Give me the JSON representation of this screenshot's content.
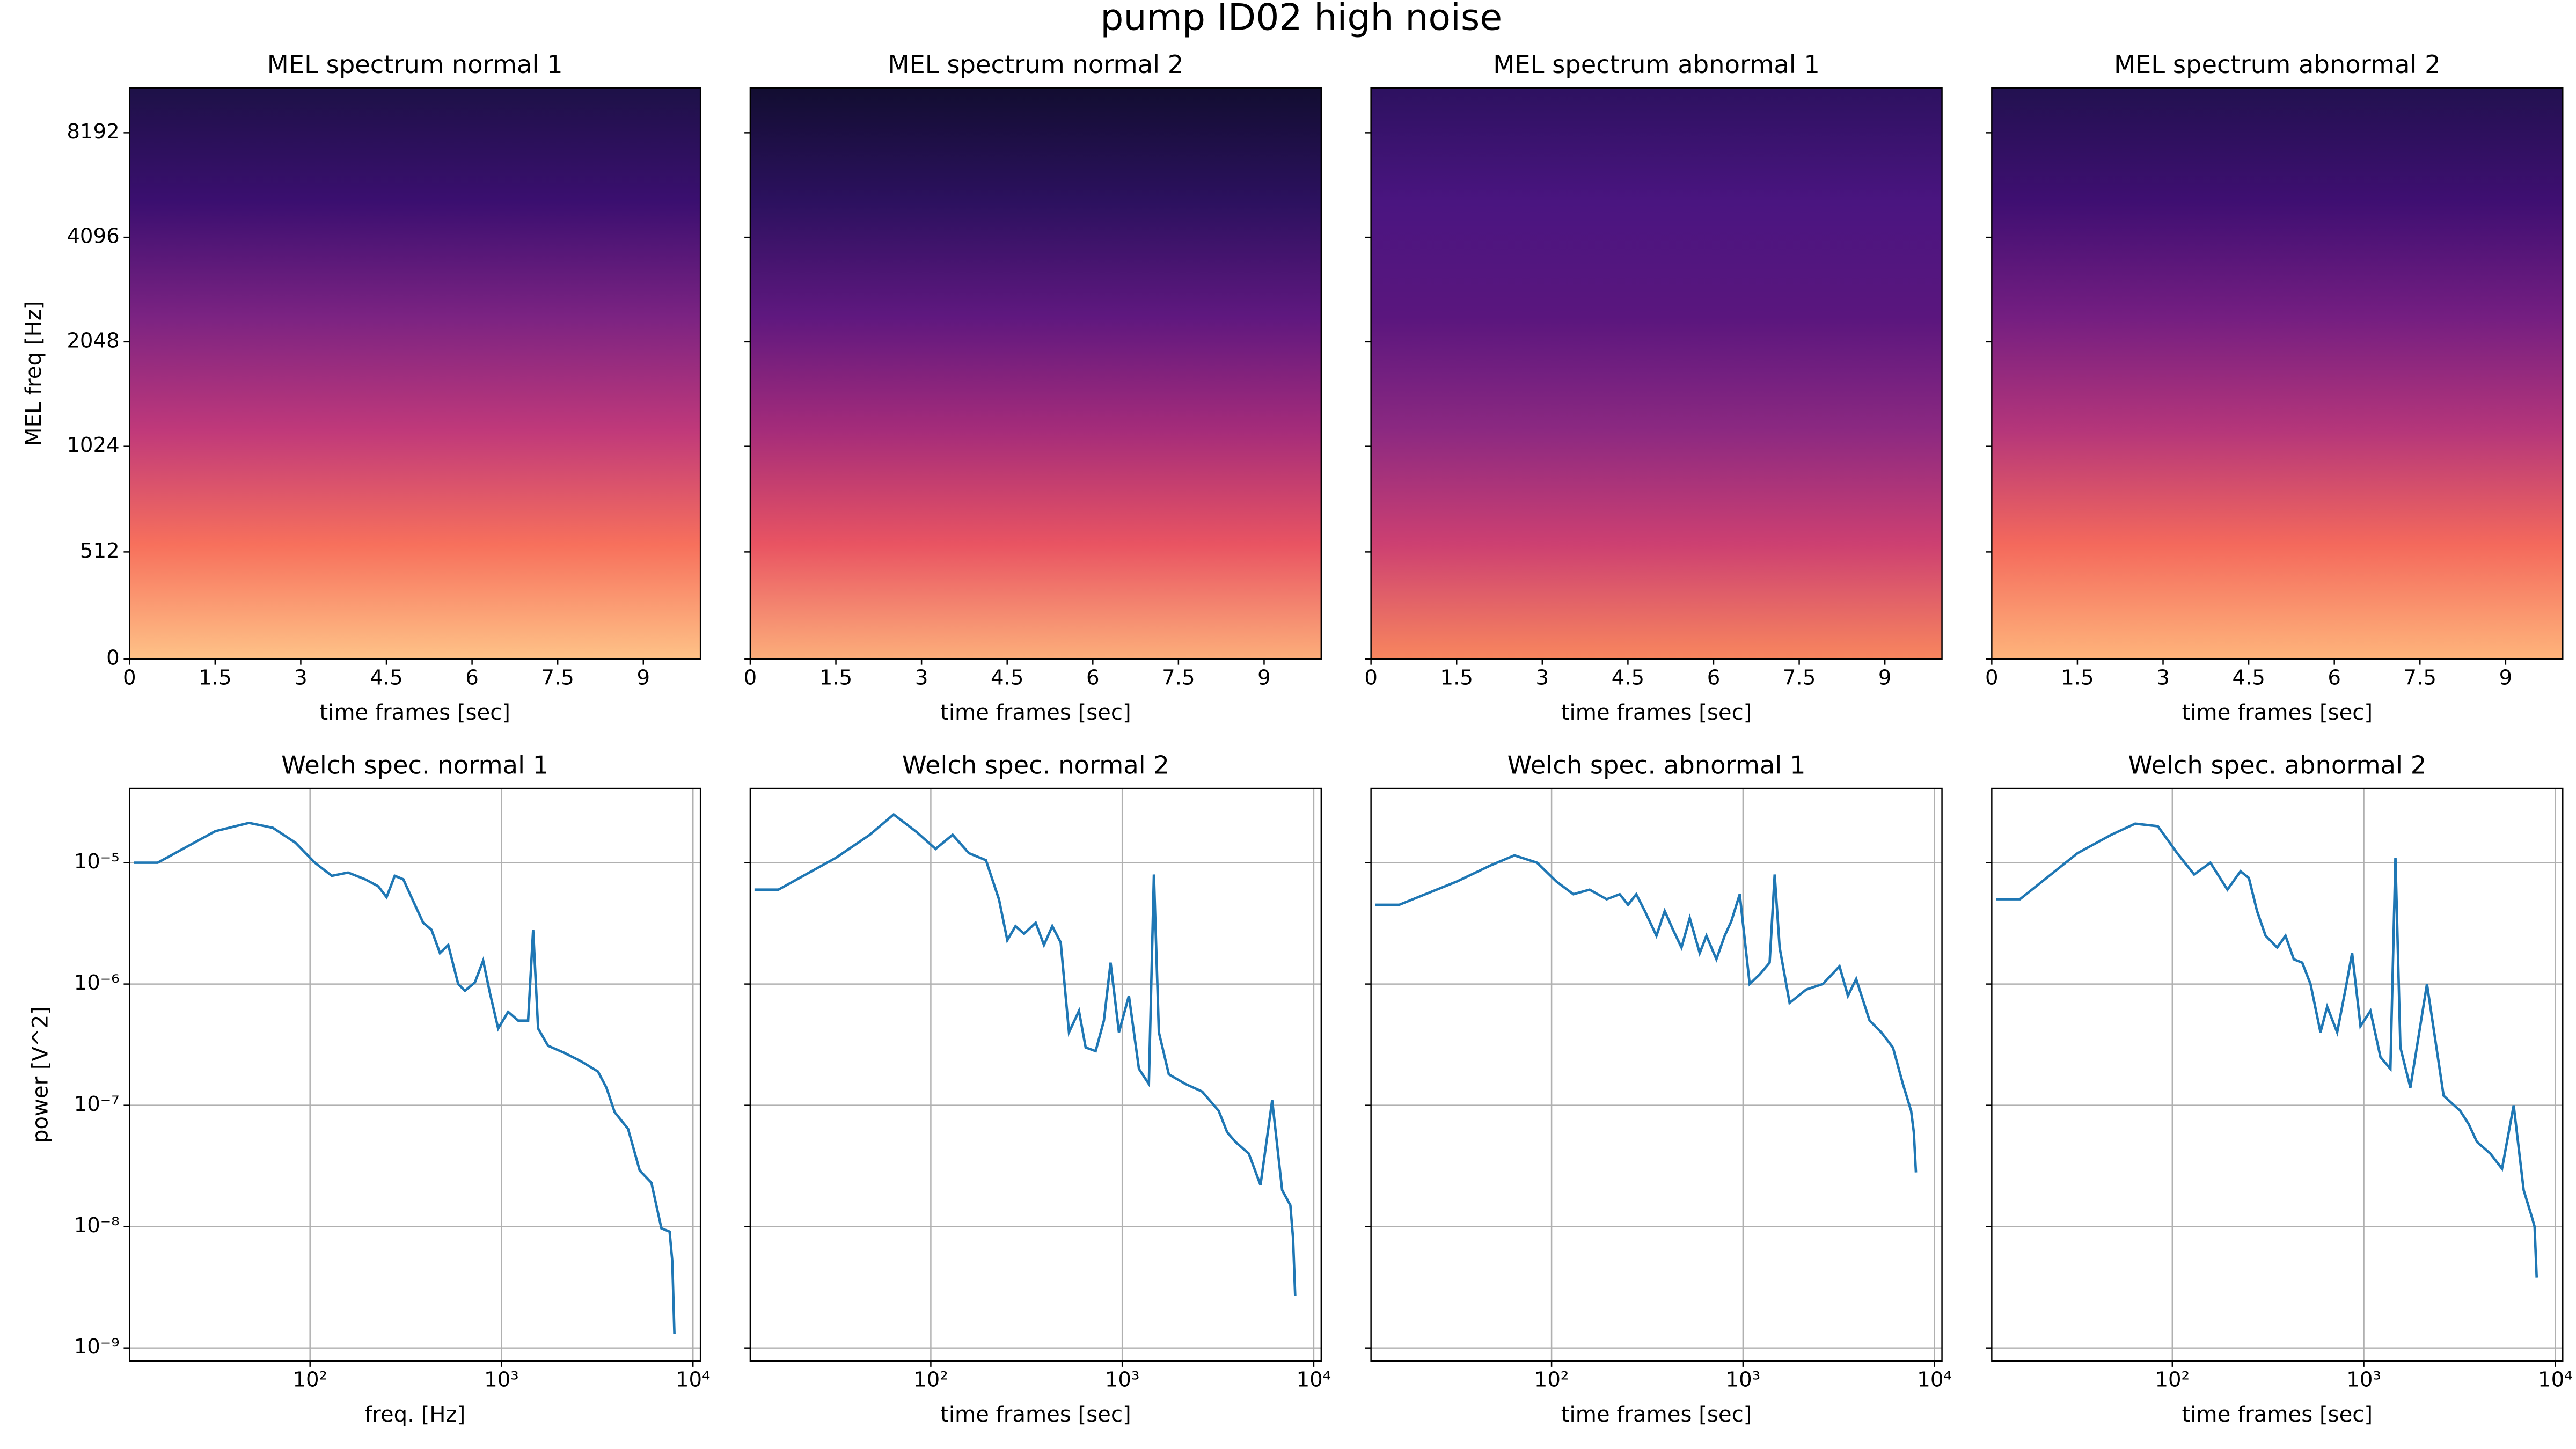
{
  "title": "pump ID02 high noise",
  "chart_data": [
    {
      "type": "heatmap",
      "title": "MEL spectrum normal 1",
      "x_label": "time frames [sec]",
      "y_label": "MEL freq [Hz]",
      "xlim": [
        0,
        10
      ],
      "xticks": [
        0,
        1.5,
        3,
        4.5,
        6,
        7.5,
        9
      ],
      "ylim": [
        0,
        11025
      ],
      "yticks": [
        0,
        512,
        1024,
        2048,
        4096,
        8192
      ],
      "yscale": "symlog",
      "linthresh": 1000,
      "base": 2,
      "colormap": [
        "#fec287",
        "#f7705c",
        "#c0397a",
        "#7b2382",
        "#3b0f70",
        "#1d1147"
      ]
    },
    {
      "type": "heatmap",
      "title": "MEL spectrum normal 2",
      "x_label": "time frames [sec]",
      "xlim": [
        0,
        10
      ],
      "xticks": [
        0,
        1.5,
        3,
        4.5,
        6,
        7.5,
        9
      ],
      "ylim": [
        0,
        11025
      ],
      "yscale": "symlog",
      "linthresh": 1000,
      "base": 2,
      "colormap": [
        "#fcae7a",
        "#e95462",
        "#a52c7a",
        "#5f187f",
        "#2c115f",
        "#120d31"
      ]
    },
    {
      "type": "heatmap",
      "title": "MEL spectrum abnormal 1",
      "x_label": "time frames [sec]",
      "xlim": [
        0,
        10
      ],
      "xticks": [
        0,
        1.5,
        3,
        4.5,
        6,
        7.5,
        9
      ],
      "ylim": [
        0,
        11025
      ],
      "yscale": "symlog",
      "linthresh": 1000,
      "base": 2,
      "colormap": [
        "#f8865e",
        "#cd4071",
        "#8c2981",
        "#5a167e",
        "#4a1580",
        "#2d1160"
      ]
    },
    {
      "type": "heatmap",
      "title": "MEL spectrum abnormal 2",
      "x_label": "time frames [sec]",
      "xlim": [
        0,
        10
      ],
      "xticks": [
        0,
        1.5,
        3,
        4.5,
        6,
        7.5,
        9
      ],
      "ylim": [
        0,
        11025
      ],
      "yscale": "symlog",
      "linthresh": 1000,
      "base": 2,
      "colormap": [
        "#feb47b",
        "#f4695c",
        "#b5367a",
        "#741e81",
        "#3f0f72",
        "#221150"
      ]
    },
    {
      "type": "line",
      "title": "Welch spec. normal 1",
      "x_label": "freq. [Hz]",
      "y_label": "power [V^2]",
      "xscale": "log",
      "yscale": "log",
      "grid": true,
      "xlim": [
        11.4,
        10940
      ],
      "xticks": [
        {
          "value": 100,
          "label": "10²"
        },
        {
          "value": 1000,
          "label": "10³"
        },
        {
          "value": 10000,
          "label": "10⁴"
        }
      ],
      "ylim": [
        7.8e-10,
        4.1e-05
      ],
      "yticks": [
        {
          "value": 1e-09,
          "label": "10⁻⁹"
        },
        {
          "value": 1e-08,
          "label": "10⁻⁸"
        },
        {
          "value": 1e-07,
          "label": "10⁻⁷"
        },
        {
          "value": 1e-06,
          "label": "10⁻⁶"
        },
        {
          "value": 1e-05,
          "label": "10⁻⁵"
        }
      ],
      "x": [
        12,
        16,
        32,
        48,
        64,
        84,
        106,
        130,
        158,
        194,
        227,
        251,
        277,
        307,
        353,
        390,
        431,
        477,
        527,
        594,
        644,
        726,
        802,
        869,
        961,
        1083,
        1222,
        1377,
        1463,
        1553,
        1751,
        2138,
        2612,
        3191,
        3531,
        3899,
        4581,
        5272,
        6067,
        6840,
        7550,
        7800,
        8000
      ],
      "series": [
        {
          "color": "#1f77b4",
          "values": [
            1e-05,
            1e-05,
            1.82e-05,
            2.13e-05,
            1.94e-05,
            1.46e-05,
            1e-05,
            7.8e-06,
            8.3e-06,
            7.3e-06,
            6.4e-06,
            5.2e-06,
            7.8e-06,
            7.3e-06,
            4.5e-06,
            3.2e-06,
            2.8e-06,
            1.8e-06,
            2.1e-06,
            1e-06,
            8.8e-07,
            1.03e-06,
            1.56e-06,
            8.5e-07,
            4.3e-07,
            5.9e-07,
            5e-07,
            5e-07,
            2.8e-06,
            4.3e-07,
            3.1e-07,
            2.7e-07,
            2.3e-07,
            1.9e-07,
            1.4e-07,
            8.8e-08,
            6.4e-08,
            2.9e-08,
            2.3e-08,
            9.7e-09,
            9.1e-09,
            5.2e-09,
            1.3e-09
          ]
        }
      ]
    },
    {
      "type": "line",
      "title": "Welch spec. normal 2",
      "x_label": "time frames [sec]",
      "xscale": "log",
      "yscale": "log",
      "grid": true,
      "xlim": [
        11.4,
        10940
      ],
      "xticks": [
        {
          "value": 100,
          "label": "10²"
        },
        {
          "value": 1000,
          "label": "10³"
        },
        {
          "value": 10000,
          "label": "10⁴"
        }
      ],
      "ylim": [
        7.8e-10,
        4.1e-05
      ],
      "x": [
        12,
        16,
        32,
        48,
        64,
        84,
        106,
        130,
        158,
        194,
        227,
        251,
        277,
        307,
        353,
        390,
        431,
        477,
        527,
        594,
        644,
        726,
        802,
        869,
        961,
        1083,
        1222,
        1377,
        1463,
        1553,
        1751,
        2138,
        2612,
        3191,
        3531,
        3899,
        4581,
        5272,
        6067,
        6840,
        7550,
        7800,
        8000
      ],
      "series": [
        {
          "color": "#1f77b4",
          "values": [
            6e-06,
            6e-06,
            1.1e-05,
            1.7e-05,
            2.5e-05,
            1.8e-05,
            1.3e-05,
            1.7e-05,
            1.2e-05,
            1.05e-05,
            5e-06,
            2.3e-06,
            3e-06,
            2.6e-06,
            3.2e-06,
            2.1e-06,
            3e-06,
            2.2e-06,
            4e-07,
            6e-07,
            3e-07,
            2.8e-07,
            5e-07,
            1.5e-06,
            4e-07,
            8e-07,
            2e-07,
            1.5e-07,
            8e-06,
            4e-07,
            1.8e-07,
            1.5e-07,
            1.3e-07,
            9e-08,
            6e-08,
            5e-08,
            4e-08,
            2.2e-08,
            1.1e-07,
            2e-08,
            1.5e-08,
            8e-09,
            2.7e-09
          ]
        }
      ]
    },
    {
      "type": "line",
      "title": "Welch spec. abnormal 1",
      "x_label": "time frames [sec]",
      "xscale": "log",
      "yscale": "log",
      "grid": true,
      "xlim": [
        11.4,
        10940
      ],
      "xticks": [
        {
          "value": 100,
          "label": "10²"
        },
        {
          "value": 1000,
          "label": "10³"
        },
        {
          "value": 10000,
          "label": "10⁴"
        }
      ],
      "ylim": [
        7.8e-10,
        4.1e-05
      ],
      "x": [
        12,
        16,
        32,
        48,
        64,
        84,
        106,
        130,
        158,
        194,
        227,
        251,
        277,
        307,
        353,
        390,
        431,
        477,
        527,
        594,
        644,
        726,
        802,
        869,
        961,
        1083,
        1222,
        1377,
        1463,
        1553,
        1751,
        2138,
        2612,
        3191,
        3531,
        3899,
        4581,
        5272,
        6067,
        6840,
        7550,
        7800,
        8000
      ],
      "series": [
        {
          "color": "#1f77b4",
          "values": [
            4.5e-06,
            4.5e-06,
            7e-06,
            9.5e-06,
            1.15e-05,
            1e-05,
            7e-06,
            5.5e-06,
            6e-06,
            5e-06,
            5.5e-06,
            4.5e-06,
            5.5e-06,
            4e-06,
            2.5e-06,
            4e-06,
            2.8e-06,
            2e-06,
            3.5e-06,
            1.8e-06,
            2.5e-06,
            1.6e-06,
            2.5e-06,
            3.3e-06,
            5.5e-06,
            1e-06,
            1.2e-06,
            1.5e-06,
            8e-06,
            2e-06,
            7e-07,
            9e-07,
            1e-06,
            1.4e-06,
            8e-07,
            1.1e-06,
            5e-07,
            4e-07,
            3e-07,
            1.5e-07,
            9e-08,
            6e-08,
            2.8e-08
          ]
        }
      ]
    },
    {
      "type": "line",
      "title": "Welch spec. abnormal 2",
      "x_label": "time frames [sec]",
      "xscale": "log",
      "yscale": "log",
      "grid": true,
      "xlim": [
        11.4,
        10940
      ],
      "xticks": [
        {
          "value": 100,
          "label": "10²"
        },
        {
          "value": 1000,
          "label": "10³"
        },
        {
          "value": 10000,
          "label": "10⁴"
        }
      ],
      "ylim": [
        7.8e-10,
        4.1e-05
      ],
      "x": [
        12,
        16,
        32,
        48,
        64,
        84,
        106,
        130,
        158,
        194,
        227,
        251,
        277,
        307,
        353,
        390,
        431,
        477,
        527,
        594,
        644,
        726,
        802,
        869,
        961,
        1083,
        1222,
        1377,
        1463,
        1553,
        1751,
        2138,
        2612,
        3191,
        3531,
        3899,
        4581,
        5272,
        6067,
        6840,
        7550,
        7800,
        8000
      ],
      "series": [
        {
          "color": "#1f77b4",
          "values": [
            5e-06,
            5e-06,
            1.2e-05,
            1.7e-05,
            2.1e-05,
            2e-05,
            1.2e-05,
            8e-06,
            1e-05,
            6e-06,
            8.5e-06,
            7.5e-06,
            4e-06,
            2.5e-06,
            2e-06,
            2.5e-06,
            1.6e-06,
            1.5e-06,
            1e-06,
            4e-07,
            6.5e-07,
            4e-07,
            9e-07,
            1.8e-06,
            4.5e-07,
            6e-07,
            2.5e-07,
            2e-07,
            1.1e-05,
            3e-07,
            1.4e-07,
            1e-06,
            1.2e-07,
            9e-08,
            7e-08,
            5e-08,
            4e-08,
            3e-08,
            1e-07,
            2e-08,
            1.2e-08,
            1e-08,
            3.8e-09
          ]
        }
      ]
    }
  ]
}
